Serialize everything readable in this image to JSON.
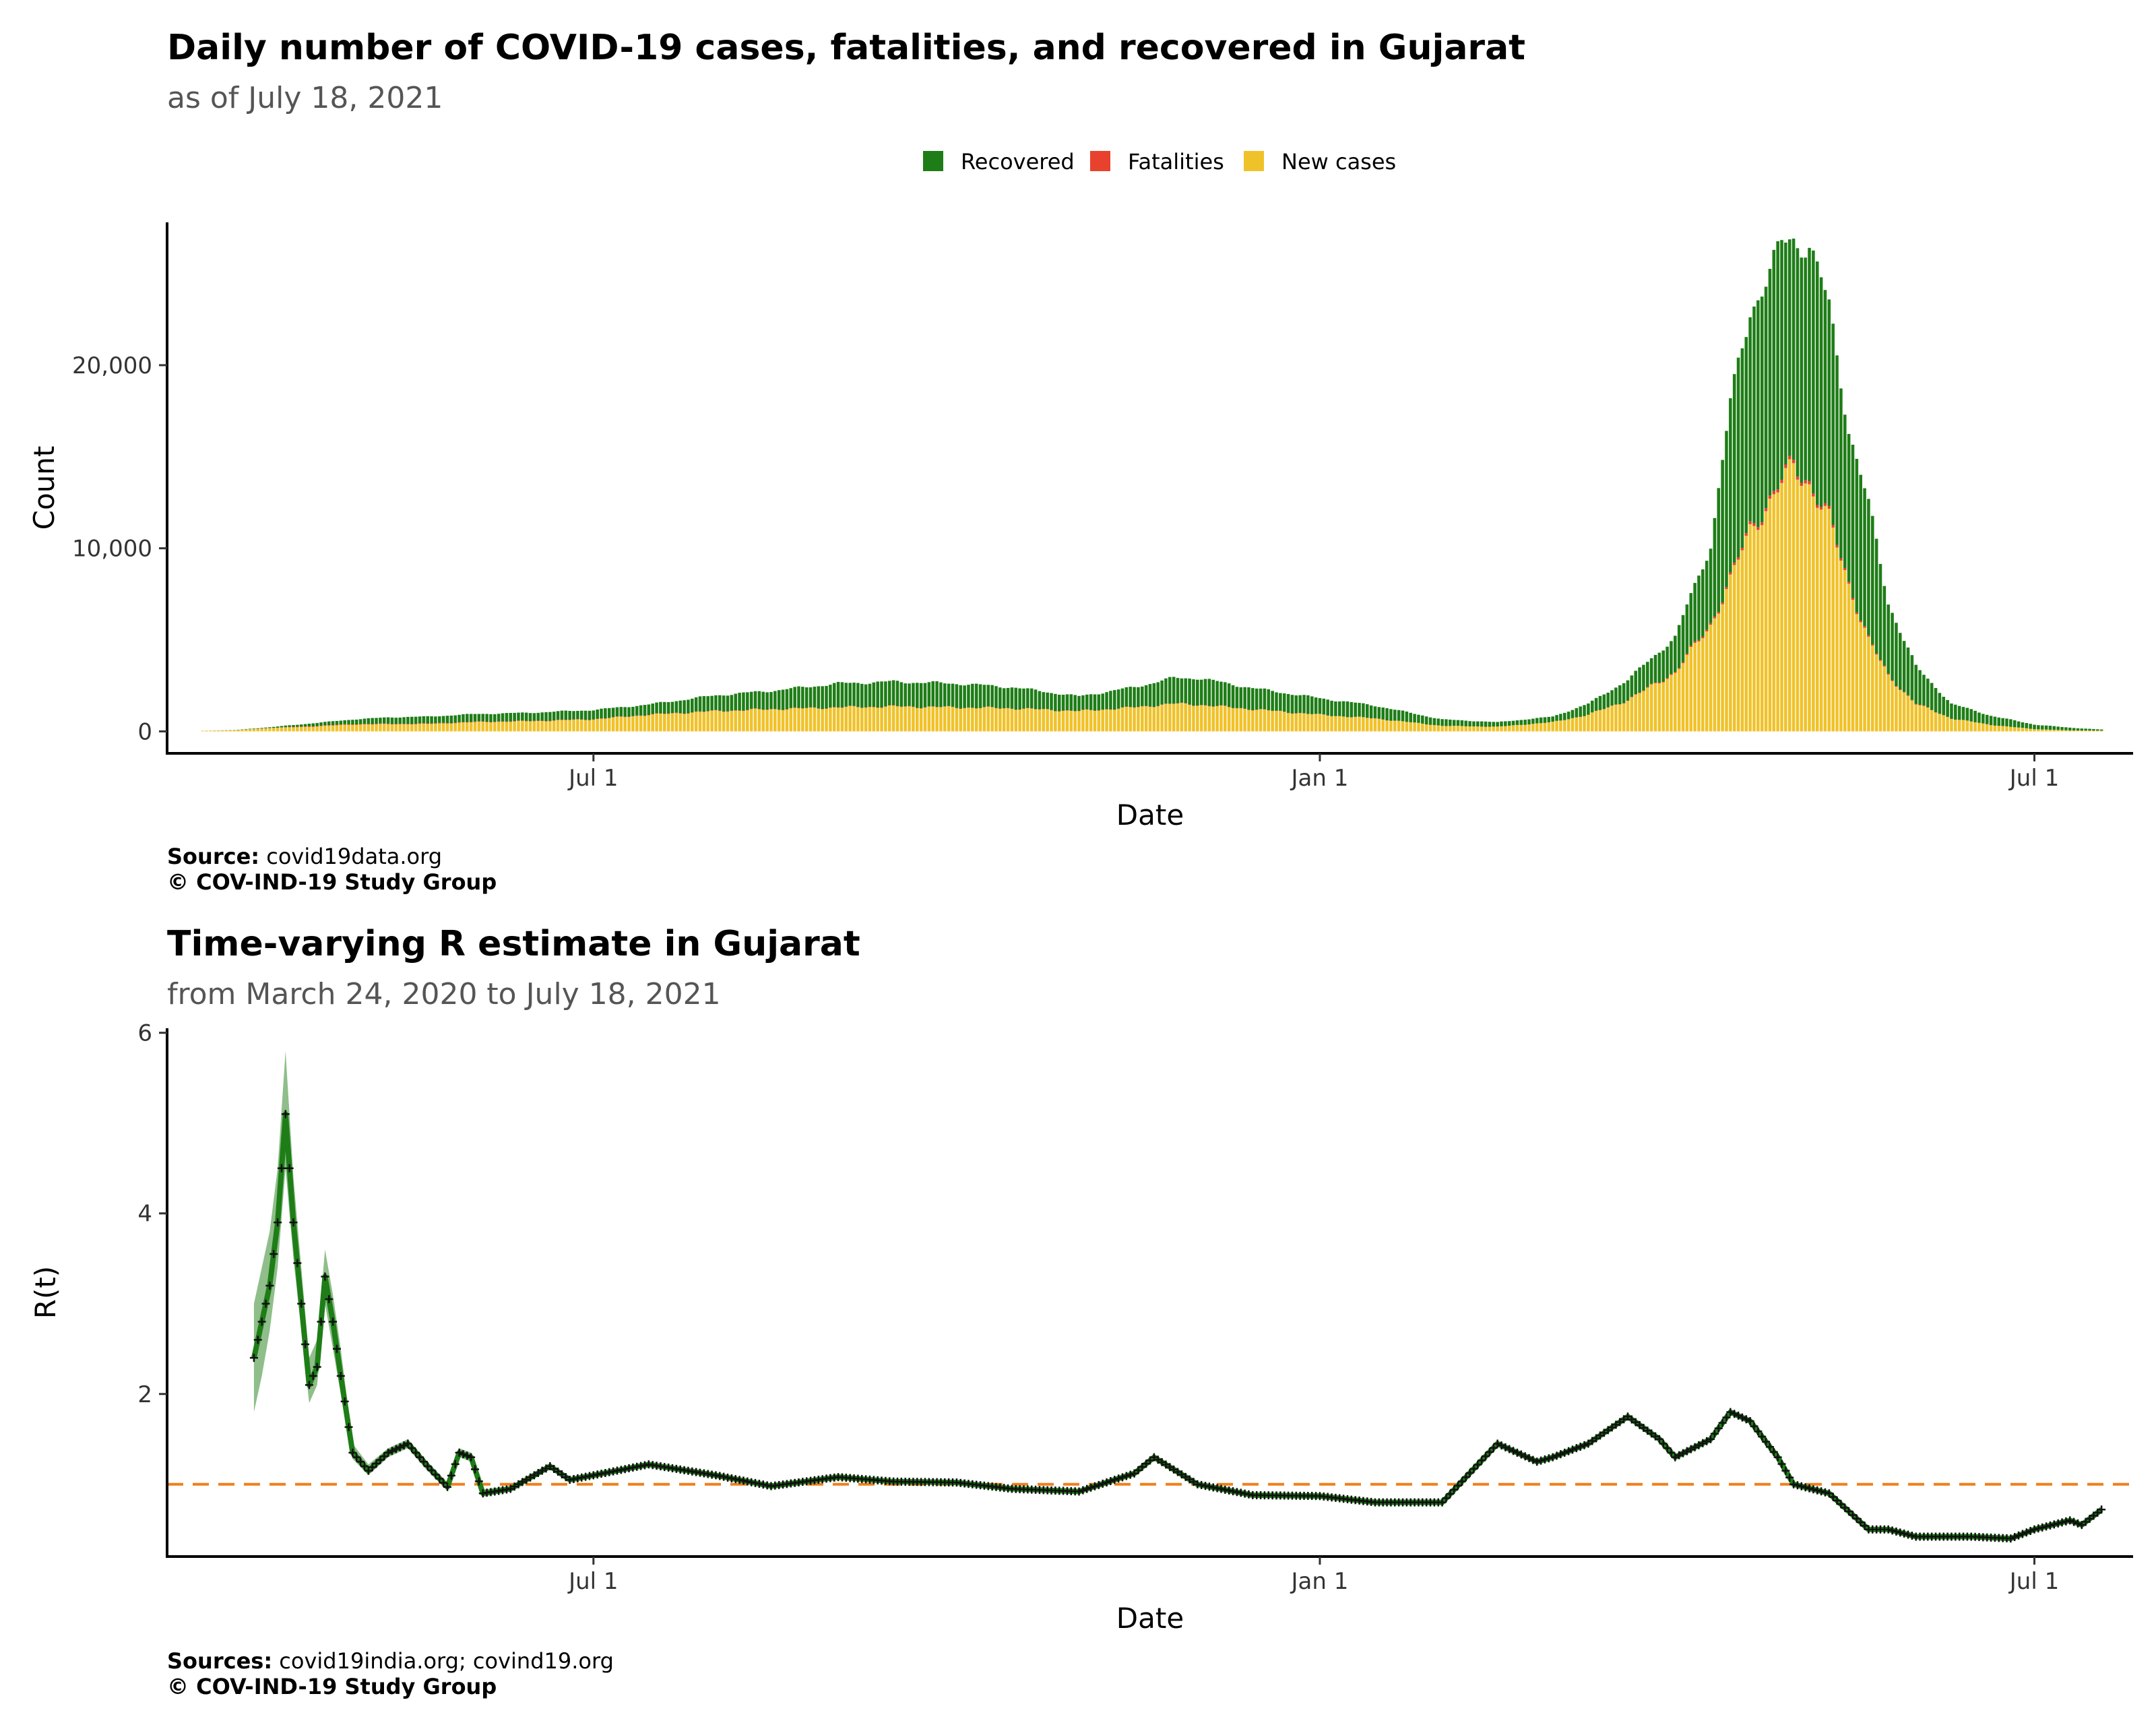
{
  "chart_data": [
    {
      "type": "bar",
      "stacked": true,
      "title": "Daily number of COVID-19 cases, fatalities, and recovered in Gujarat",
      "subtitle": "as of July 18, 2021",
      "xlabel": "Date",
      "ylabel": "Count",
      "x_range": [
        "2020-03-15",
        "2021-07-26"
      ],
      "ylim": [
        -1200,
        27800
      ],
      "y_ticks": [
        0,
        10000,
        20000
      ],
      "y_tick_labels": [
        "0",
        "10,000",
        "20,000"
      ],
      "x_ticks": [
        "2020-07-01",
        "2021-01-01",
        "2021-07-01"
      ],
      "x_tick_labels": [
        "Jul 1",
        "Jan 1",
        "Jul 1"
      ],
      "legend": {
        "position": "top",
        "entries": [
          "Recovered",
          "Fatalities",
          "New cases"
        ]
      },
      "colors": {
        "Recovered": "#1e7d17",
        "Fatalities": "#e8412e",
        "New cases": "#f0c22a"
      },
      "x": [
        "2020-03-24",
        "2020-04-01",
        "2020-04-10",
        "2020-04-20",
        "2020-05-01",
        "2020-05-10",
        "2020-05-20",
        "2020-06-01",
        "2020-06-15",
        "2020-07-01",
        "2020-07-15",
        "2020-08-01",
        "2020-08-15",
        "2020-09-01",
        "2020-09-15",
        "2020-10-01",
        "2020-10-15",
        "2020-11-01",
        "2020-11-15",
        "2020-11-25",
        "2020-12-01",
        "2020-12-15",
        "2021-01-01",
        "2021-01-15",
        "2021-02-01",
        "2021-02-15",
        "2021-03-01",
        "2021-03-10",
        "2021-03-20",
        "2021-04-01",
        "2021-04-10",
        "2021-04-15",
        "2021-04-20",
        "2021-04-25",
        "2021-04-28",
        "2021-05-01",
        "2021-05-05",
        "2021-05-10",
        "2021-05-15",
        "2021-05-20",
        "2021-05-25",
        "2021-06-01",
        "2021-06-10",
        "2021-06-20",
        "2021-07-01",
        "2021-07-10",
        "2021-07-18"
      ],
      "series": [
        {
          "name": "New cases",
          "values": [
            30,
            60,
            180,
            250,
            370,
            390,
            400,
            500,
            550,
            650,
            900,
            1100,
            1200,
            1300,
            1350,
            1300,
            1250,
            1100,
            1300,
            1500,
            1450,
            1200,
            900,
            700,
            300,
            250,
            500,
            900,
            1700,
            3200,
            5800,
            8200,
            11000,
            12500,
            13500,
            14400,
            13500,
            11500,
            8000,
            5000,
            3000,
            1500,
            700,
            350,
            120,
            50,
            40
          ]
        },
        {
          "name": "Fatalities",
          "values": [
            1,
            2,
            8,
            25,
            30,
            25,
            28,
            26,
            20,
            18,
            20,
            18,
            16,
            15,
            15,
            14,
            13,
            12,
            15,
            16,
            15,
            13,
            10,
            8,
            3,
            2,
            4,
            8,
            15,
            55,
            90,
            110,
            150,
            170,
            175,
            180,
            170,
            145,
            110,
            80,
            45,
            25,
            10,
            5,
            2,
            1,
            1
          ]
        },
        {
          "name": "Recovered",
          "values": [
            0,
            10,
            40,
            150,
            250,
            350,
            380,
            420,
            450,
            500,
            550,
            850,
            1000,
            1300,
            1350,
            1300,
            1150,
            800,
            1100,
            1400,
            1450,
            1150,
            900,
            700,
            350,
            250,
            300,
            600,
            1100,
            1900,
            4300,
            9500,
            12000,
            12300,
            12800,
            12300,
            13000,
            11400,
            8500,
            7300,
            4000,
            2000,
            800,
            500,
            250,
            150,
            60
          ]
        }
      ]
    },
    {
      "type": "line",
      "title": "Time-varying R estimate in Gujarat",
      "subtitle": "from March 24, 2020 to July 18, 2021",
      "xlabel": "Date",
      "ylabel": "R(t)",
      "x_range": [
        "2020-03-15",
        "2021-07-26"
      ],
      "ylim": [
        0.2,
        6.05
      ],
      "y_ticks": [
        2,
        4,
        6
      ],
      "y_tick_labels": [
        "2",
        "4",
        "6"
      ],
      "x_ticks": [
        "2020-07-01",
        "2021-01-01",
        "2021-07-01"
      ],
      "x_tick_labels": [
        "Jul 1",
        "Jan 1",
        "Jul 1"
      ],
      "reference_line": {
        "y": 1,
        "style": "dashed",
        "color": "#f07f1a"
      },
      "colors": {
        "line": "#1e7d17",
        "band": "#6aa863",
        "points": "#111111"
      },
      "x": [
        "2020-04-06",
        "2020-04-08",
        "2020-04-10",
        "2020-04-12",
        "2020-04-14",
        "2020-04-16",
        "2020-04-18",
        "2020-04-20",
        "2020-04-22",
        "2020-04-24",
        "2020-04-26",
        "2020-04-28",
        "2020-05-01",
        "2020-05-05",
        "2020-05-10",
        "2020-05-15",
        "2020-05-20",
        "2020-05-25",
        "2020-05-28",
        "2020-05-31",
        "2020-06-03",
        "2020-06-06",
        "2020-06-10",
        "2020-06-20",
        "2020-06-25",
        "2020-07-01",
        "2020-07-15",
        "2020-08-01",
        "2020-08-15",
        "2020-09-01",
        "2020-09-15",
        "2020-10-01",
        "2020-10-15",
        "2020-11-01",
        "2020-11-10",
        "2020-11-15",
        "2020-11-20",
        "2020-12-01",
        "2020-12-15",
        "2021-01-01",
        "2021-01-15",
        "2021-02-01",
        "2021-02-15",
        "2021-02-25",
        "2021-03-01",
        "2021-03-10",
        "2021-03-20",
        "2021-03-28",
        "2021-04-01",
        "2021-04-10",
        "2021-04-15",
        "2021-04-20",
        "2021-04-27",
        "2021-05-01",
        "2021-05-10",
        "2021-05-20",
        "2021-05-25",
        "2021-06-01",
        "2021-06-15",
        "2021-06-25",
        "2021-07-01",
        "2021-07-10",
        "2021-07-13",
        "2021-07-18"
      ],
      "values": [
        2.4,
        2.8,
        3.2,
        3.9,
        5.1,
        3.9,
        3.0,
        2.1,
        2.3,
        3.3,
        2.8,
        2.2,
        1.35,
        1.15,
        1.35,
        1.45,
        1.2,
        0.97,
        1.35,
        1.3,
        0.9,
        0.92,
        0.95,
        1.2,
        1.05,
        1.1,
        1.22,
        1.1,
        0.98,
        1.08,
        1.03,
        1.02,
        0.95,
        0.92,
        1.05,
        1.12,
        1.3,
        1.0,
        0.88,
        0.87,
        0.8,
        0.8,
        1.45,
        1.25,
        1.3,
        1.45,
        1.75,
        1.5,
        1.3,
        1.5,
        1.8,
        1.7,
        1.3,
        1.0,
        0.9,
        0.5,
        0.5,
        0.42,
        0.42,
        0.4,
        0.5,
        0.6,
        0.55,
        0.72
      ],
      "ci_lower": [
        1.8,
        2.2,
        2.7,
        3.4,
        4.5,
        3.5,
        2.7,
        1.9,
        2.1,
        3.0,
        2.5,
        2.0,
        1.28,
        1.1,
        1.3,
        1.4,
        1.15,
        0.93,
        1.3,
        1.25,
        0.86,
        0.89,
        0.92,
        1.17,
        1.02,
        1.07,
        1.2,
        1.08,
        0.96,
        1.06,
        1.01,
        1.0,
        0.93,
        0.9,
        1.03,
        1.1,
        1.27,
        0.98,
        0.86,
        0.85,
        0.77,
        0.77,
        1.42,
        1.23,
        1.28,
        1.43,
        1.73,
        1.48,
        1.28,
        1.48,
        1.78,
        1.68,
        1.28,
        0.98,
        0.88,
        0.48,
        0.48,
        0.4,
        0.4,
        0.38,
        0.48,
        0.57,
        0.52,
        0.68
      ],
      "ci_upper": [
        3.0,
        3.4,
        3.8,
        4.5,
        5.8,
        4.4,
        3.4,
        2.4,
        2.6,
        3.6,
        3.1,
        2.5,
        1.45,
        1.22,
        1.4,
        1.5,
        1.25,
        1.02,
        1.4,
        1.35,
        0.94,
        0.96,
        0.98,
        1.23,
        1.08,
        1.13,
        1.25,
        1.12,
        1.0,
        1.1,
        1.05,
        1.04,
        0.97,
        0.94,
        1.07,
        1.15,
        1.33,
        1.02,
        0.9,
        0.89,
        0.83,
        0.83,
        1.48,
        1.27,
        1.32,
        1.47,
        1.77,
        1.52,
        1.32,
        1.52,
        1.82,
        1.72,
        1.32,
        1.02,
        0.92,
        0.52,
        0.52,
        0.44,
        0.44,
        0.42,
        0.52,
        0.63,
        0.58,
        0.76
      ]
    }
  ],
  "captions": {
    "top": {
      "source_label": "Source:",
      "source_text": " covid19data.org",
      "copyright": "© COV-IND-19 Study Group"
    },
    "bottom": {
      "source_label": "Sources:",
      "source_text": " covid19india.org; covind19.org",
      "copyright": "© COV-IND-19 Study Group"
    }
  }
}
